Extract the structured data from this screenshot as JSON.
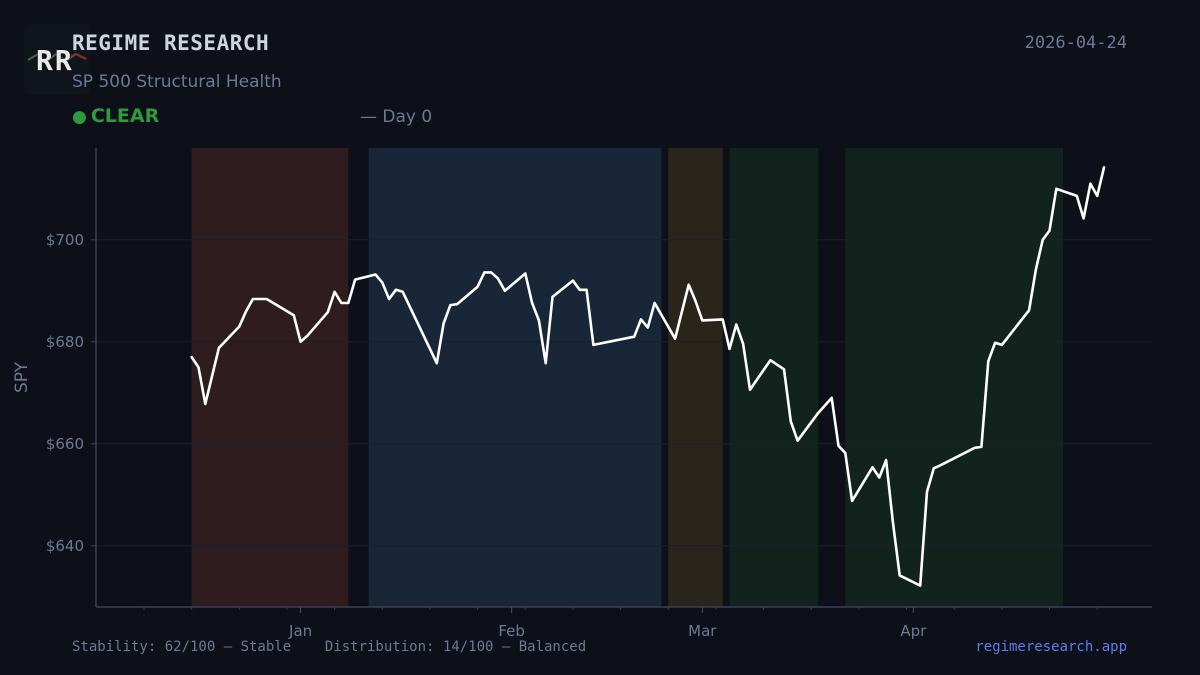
{
  "header": {
    "logo_text": "RR",
    "title": "REGIME RESEARCH",
    "subtitle": "SP 500 Structural Health",
    "status_label": "CLEAR",
    "status_color": "#2e9a3e",
    "day_text": "— Day 0",
    "date": "2026-04-24"
  },
  "footer": {
    "left": "Stability: 62/100 — Stable    Distribution: 14/100 — Balanced",
    "right": "regimeresearch.app"
  },
  "chart_data": {
    "type": "line",
    "ylabel": "SPY",
    "ylim": [
      628,
      718
    ],
    "yticks": [
      640,
      660,
      680,
      700
    ],
    "ytick_labels": [
      "$640",
      "$660",
      "$680",
      "$700"
    ],
    "xlim": [
      "2025-12-09",
      "2026-04-29"
    ],
    "xticks": [
      "2026-01-01",
      "2026-02-01",
      "2026-03-01",
      "2026-04-01"
    ],
    "xtick_labels": [
      "Jan",
      "Feb",
      "Mar",
      "Apr"
    ],
    "grid": true,
    "line_color": "#ffffff",
    "regime_bands": [
      {
        "start": "2025-12-16",
        "end": "2026-01-08",
        "color": "#2e1c1f"
      },
      {
        "start": "2026-01-11",
        "end": "2026-02-23",
        "color": "#182638"
      },
      {
        "start": "2026-02-24",
        "end": "2026-03-04",
        "color": "#2a251b"
      },
      {
        "start": "2026-03-05",
        "end": "2026-03-18",
        "color": "#12231e"
      },
      {
        "start": "2026-03-22",
        "end": "2026-04-23",
        "color": "#12231e"
      }
    ],
    "series": [
      {
        "values": [
          [
            "2025-12-16",
            677.0
          ],
          [
            "2025-12-17",
            675.0
          ],
          [
            "2025-12-18",
            667.8
          ],
          [
            "2025-12-20",
            678.8
          ],
          [
            "2025-12-23",
            683.0
          ],
          [
            "2025-12-24",
            686.0
          ],
          [
            "2025-12-25",
            688.4
          ],
          [
            "2025-12-27",
            688.4
          ],
          [
            "2025-12-31",
            685.2
          ],
          [
            "2026-01-01",
            680.0
          ],
          [
            "2026-01-02",
            681.2
          ],
          [
            "2026-01-05",
            685.8
          ],
          [
            "2026-01-06",
            689.8
          ],
          [
            "2026-01-07",
            687.6
          ],
          [
            "2026-01-08",
            687.6
          ],
          [
            "2026-01-09",
            692.2
          ],
          [
            "2026-01-12",
            693.2
          ],
          [
            "2026-01-13",
            691.6
          ],
          [
            "2026-01-14",
            688.4
          ],
          [
            "2026-01-15",
            690.2
          ],
          [
            "2026-01-16",
            689.8
          ],
          [
            "2026-01-21",
            675.8
          ],
          [
            "2026-01-22",
            683.6
          ],
          [
            "2026-01-23",
            687.2
          ],
          [
            "2026-01-24",
            687.4
          ],
          [
            "2026-01-27",
            690.8
          ],
          [
            "2026-01-28",
            693.6
          ],
          [
            "2026-01-29",
            693.6
          ],
          [
            "2026-01-30",
            692.4
          ],
          [
            "2026-01-31",
            690.0
          ],
          [
            "2026-02-03",
            693.4
          ],
          [
            "2026-02-04",
            687.6
          ],
          [
            "2026-02-05",
            684.2
          ],
          [
            "2026-02-06",
            675.8
          ],
          [
            "2026-02-07",
            688.8
          ],
          [
            "2026-02-10",
            692.0
          ],
          [
            "2026-02-11",
            690.2
          ],
          [
            "2026-02-12",
            690.2
          ],
          [
            "2026-02-13",
            679.4
          ],
          [
            "2026-02-19",
            681.0
          ],
          [
            "2026-02-20",
            684.4
          ],
          [
            "2026-02-21",
            682.8
          ],
          [
            "2026-02-22",
            687.6
          ],
          [
            "2026-02-25",
            680.6
          ],
          [
            "2026-02-27",
            691.2
          ],
          [
            "2026-02-28",
            688.0
          ],
          [
            "2026-03-01",
            684.2
          ],
          [
            "2026-03-04",
            684.4
          ],
          [
            "2026-03-05",
            678.6
          ],
          [
            "2026-03-06",
            683.4
          ],
          [
            "2026-03-07",
            679.6
          ],
          [
            "2026-03-08",
            670.6
          ],
          [
            "2026-03-11",
            676.4
          ],
          [
            "2026-03-13",
            674.6
          ],
          [
            "2026-03-14",
            664.4
          ],
          [
            "2026-03-15",
            660.6
          ],
          [
            "2026-03-18",
            666.0
          ],
          [
            "2026-03-20",
            669.0
          ],
          [
            "2026-03-21",
            659.6
          ],
          [
            "2026-03-22",
            658.2
          ],
          [
            "2026-03-23",
            648.8
          ],
          [
            "2026-03-26",
            655.4
          ],
          [
            "2026-03-27",
            653.4
          ],
          [
            "2026-03-28",
            656.8
          ],
          [
            "2026-03-29",
            644.6
          ],
          [
            "2026-03-30",
            634.2
          ],
          [
            "2026-04-02",
            632.2
          ],
          [
            "2026-04-03",
            650.6
          ],
          [
            "2026-04-04",
            655.2
          ],
          [
            "2026-04-05",
            655.8
          ],
          [
            "2026-04-10",
            659.2
          ],
          [
            "2026-04-11",
            659.4
          ],
          [
            "2026-04-12",
            676.2
          ],
          [
            "2026-04-13",
            679.8
          ],
          [
            "2026-04-14",
            679.4
          ],
          [
            "2026-04-18",
            686.2
          ],
          [
            "2026-04-19",
            694.2
          ],
          [
            "2026-04-20",
            700.0
          ],
          [
            "2026-04-21",
            701.8
          ],
          [
            "2026-04-22",
            710.0
          ],
          [
            "2026-04-25",
            708.6
          ],
          [
            "2026-04-26",
            704.2
          ],
          [
            "2026-04-27",
            711.0
          ],
          [
            "2026-04-28",
            708.6
          ],
          [
            "2026-04-29",
            714.2
          ]
        ]
      }
    ]
  }
}
